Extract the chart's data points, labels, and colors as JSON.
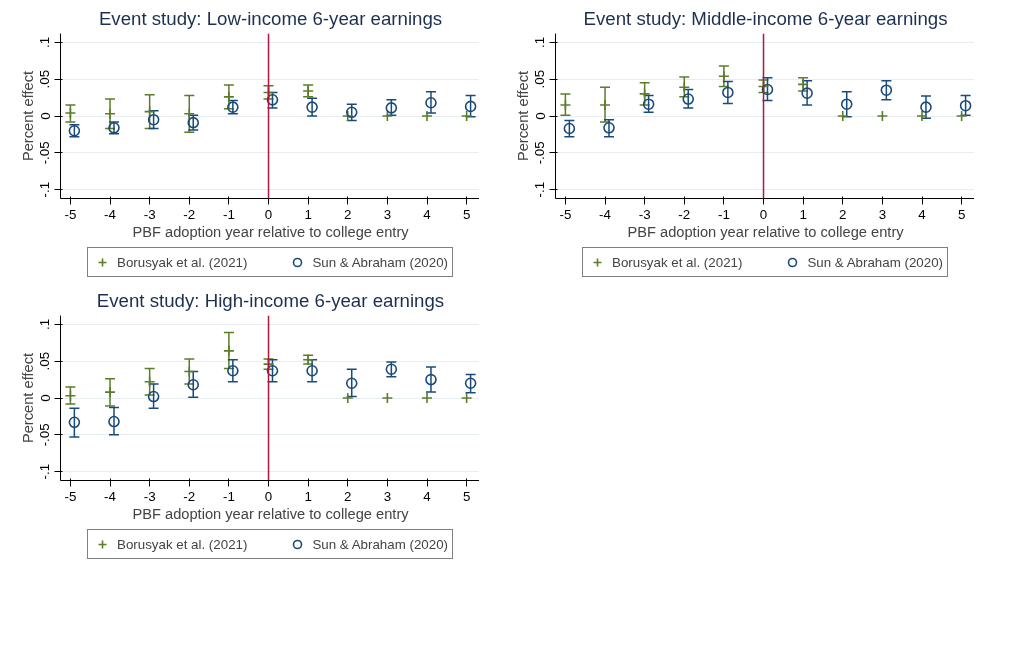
{
  "chart_data": [
    {
      "type": "scatter",
      "title": "Event study: Low-income 6-year earnings",
      "xlabel": "PBF adoption year relative to college entry",
      "ylabel": "Percent effect",
      "xlim": [
        -5.25,
        5.35
      ],
      "xticks": [
        -5,
        -4,
        -3,
        -2,
        -1,
        0,
        1,
        2,
        3,
        4,
        5
      ],
      "ylim": [
        -0.112,
        0.112
      ],
      "yticks": [
        {
          "value": -0.1,
          "label": "-.1"
        },
        {
          "value": -0.05,
          "label": "-.05"
        },
        0,
        {
          "value": 0.05,
          "label": ".05"
        },
        {
          "value": 0.1,
          "label": ".1"
        }
      ],
      "grid": "y",
      "legend": "bottom",
      "ref_lines": [
        {
          "axis": "x",
          "value": 0,
          "color": "#b0173a"
        }
      ],
      "series": [
        {
          "name": "Borusyak et al. (2021)",
          "color": "#5a7d2a",
          "marker": "cross",
          "x": [
            -5,
            -4,
            -3,
            -2,
            -1,
            0,
            1,
            2,
            3,
            4,
            5
          ],
          "values": [
            0.004,
            0.003,
            0.006,
            0.003,
            0.026,
            0.032,
            0.034,
            0,
            0,
            0,
            0
          ],
          "errors": [
            [
              -0.008,
              0.015
            ],
            [
              -0.017,
              0.023
            ],
            [
              -0.017,
              0.029
            ],
            [
              -0.022,
              0.028
            ],
            [
              0.01,
              0.042
            ],
            [
              0.023,
              0.041
            ],
            [
              0.026,
              0.042
            ],
            null,
            null,
            null,
            null
          ]
        },
        {
          "name": "Sun & Abraham (2020)",
          "color": "#1a4a7a",
          "marker": "circle",
          "x": [
            -4.9,
            -3.9,
            -2.9,
            -1.9,
            -0.9,
            0.1,
            1.1,
            2.1,
            3.1,
            4.1,
            5.1
          ],
          "values": [
            -0.02,
            -0.016,
            -0.005,
            -0.009,
            0.012,
            0.022,
            0.012,
            0.005,
            0.011,
            0.018,
            0.013
          ],
          "errors": [
            [
              -0.028,
              -0.012
            ],
            [
              -0.024,
              -0.008
            ],
            [
              -0.017,
              0.007
            ],
            [
              -0.019,
              0.001
            ],
            [
              0.003,
              0.021
            ],
            [
              0.011,
              0.032
            ],
            [
              0.0,
              0.024
            ],
            [
              -0.006,
              0.016
            ],
            [
              0.001,
              0.022
            ],
            [
              0.004,
              0.033
            ],
            [
              -0.001,
              0.028
            ]
          ]
        }
      ]
    },
    {
      "type": "scatter",
      "title": "Event study: Middle-income 6-year earnings",
      "xlabel": "PBF adoption year relative to college entry",
      "ylabel": "Percent effect",
      "xlim": [
        -5.25,
        5.35
      ],
      "xticks": [
        -5,
        -4,
        -3,
        -2,
        -1,
        0,
        1,
        2,
        3,
        4,
        5
      ],
      "ylim": [
        -0.112,
        0.112
      ],
      "yticks": [
        {
          "value": -0.1,
          "label": "-.1"
        },
        {
          "value": -0.05,
          "label": "-.05"
        },
        0,
        {
          "value": 0.05,
          "label": ".05"
        },
        {
          "value": 0.1,
          "label": ".1"
        }
      ],
      "grid": "y",
      "legend": "bottom",
      "ref_lines": [
        {
          "axis": "x",
          "value": 0,
          "color": "#b0173a"
        }
      ],
      "series": [
        {
          "name": "Borusyak et al. (2021)",
          "color": "#5a7d2a",
          "marker": "cross",
          "x": [
            -5,
            -4,
            -3,
            -2,
            -1,
            0,
            1,
            2,
            3,
            4,
            5
          ],
          "values": [
            0.015,
            0.015,
            0.03,
            0.039,
            0.054,
            0.04,
            0.043,
            0,
            0,
            0,
            0
          ],
          "errors": [
            [
              0.001,
              0.03
            ],
            [
              -0.008,
              0.039
            ],
            [
              0.015,
              0.045
            ],
            [
              0.026,
              0.053
            ],
            [
              0.04,
              0.068
            ],
            [
              0.032,
              0.049
            ],
            [
              0.034,
              0.052
            ],
            null,
            null,
            null,
            null
          ]
        },
        {
          "name": "Sun & Abraham (2020)",
          "color": "#1a4a7a",
          "marker": "circle",
          "x": [
            -4.9,
            -3.9,
            -2.9,
            -1.9,
            -0.9,
            0.1,
            1.1,
            2.1,
            3.1,
            4.1,
            5.1
          ],
          "values": [
            -0.017,
            -0.016,
            0.016,
            0.023,
            0.032,
            0.036,
            0.031,
            0.016,
            0.035,
            0.012,
            0.014
          ],
          "errors": [
            [
              -0.028,
              -0.006
            ],
            [
              -0.028,
              -0.005
            ],
            [
              0.005,
              0.028
            ],
            [
              0.011,
              0.036
            ],
            [
              0.017,
              0.047
            ],
            [
              0.021,
              0.052
            ],
            [
              0.015,
              0.048
            ],
            [
              -0.001,
              0.033
            ],
            [
              0.022,
              0.048
            ],
            [
              -0.003,
              0.027
            ],
            [
              0.001,
              0.028
            ]
          ]
        }
      ]
    },
    {
      "type": "scatter",
      "title": "Event study: High-income 6-year earnings",
      "xlabel": "PBF adoption year relative to college entry",
      "ylabel": "Percent effect",
      "xlim": [
        -5.25,
        5.35
      ],
      "xticks": [
        -5,
        -4,
        -3,
        -2,
        -1,
        0,
        1,
        2,
        3,
        4,
        5
      ],
      "ylim": [
        -0.112,
        0.112
      ],
      "yticks": [
        {
          "value": -0.1,
          "label": "-.1"
        },
        {
          "value": -0.05,
          "label": "-.05"
        },
        0,
        {
          "value": 0.05,
          "label": ".05"
        },
        {
          "value": 0.1,
          "label": ".1"
        }
      ],
      "grid": "y",
      "legend": "bottom",
      "ref_lines": [
        {
          "axis": "x",
          "value": 0,
          "color": "#b0173a"
        }
      ],
      "series": [
        {
          "name": "Borusyak et al. (2021)",
          "color": "#5a7d2a",
          "marker": "cross",
          "x": [
            -5,
            -4,
            -3,
            -2,
            -1,
            0,
            1,
            2,
            3,
            4,
            5
          ],
          "values": [
            0.003,
            0.008,
            0.022,
            0.036,
            0.064,
            0.046,
            0.052,
            0,
            0,
            0,
            0
          ],
          "errors": [
            [
              -0.008,
              0.015
            ],
            [
              -0.011,
              0.026
            ],
            [
              0.004,
              0.04
            ],
            [
              0.019,
              0.053
            ],
            [
              0.04,
              0.089
            ],
            [
              0.039,
              0.053
            ],
            [
              0.046,
              0.058
            ],
            null,
            null,
            null,
            null
          ]
        },
        {
          "name": "Sun & Abraham (2020)",
          "color": "#1a4a7a",
          "marker": "circle",
          "x": [
            -4.9,
            -3.9,
            -2.9,
            -1.9,
            -0.9,
            0.1,
            1.1,
            2.1,
            3.1,
            4.1,
            5.1
          ],
          "values": [
            -0.033,
            -0.032,
            0.002,
            0.018,
            0.037,
            0.037,
            0.037,
            0.02,
            0.039,
            0.025,
            0.02
          ],
          "errors": [
            [
              -0.053,
              -0.014
            ],
            [
              -0.05,
              -0.013
            ],
            [
              -0.014,
              0.019
            ],
            [
              0.001,
              0.036
            ],
            [
              0.022,
              0.052
            ],
            [
              0.022,
              0.052
            ],
            [
              0.022,
              0.052
            ],
            [
              0.002,
              0.039
            ],
            [
              0.029,
              0.049
            ],
            [
              0.008,
              0.042
            ],
            [
              0.007,
              0.032
            ]
          ]
        }
      ]
    }
  ]
}
